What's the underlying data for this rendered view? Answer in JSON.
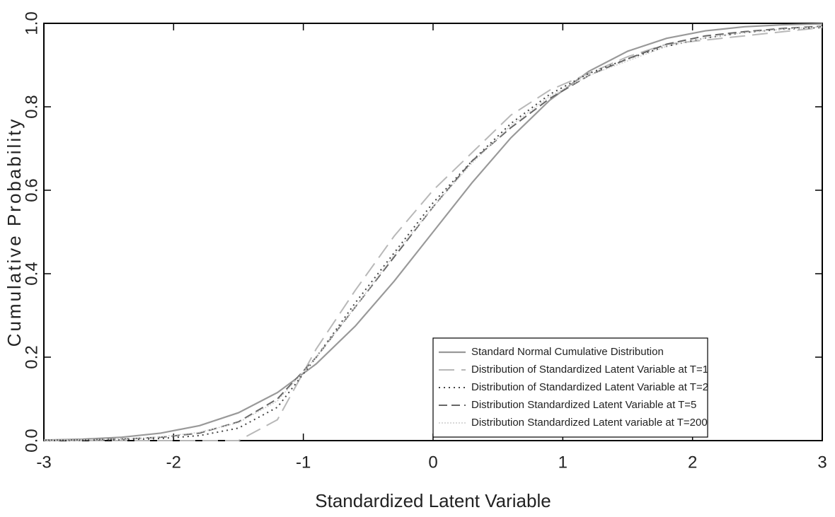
{
  "chart_data": {
    "type": "line",
    "x_label": "Standardized Latent Variable",
    "y_label": "Cumulative Probability",
    "x": [
      -3,
      -2.7,
      -2.4,
      -2.1,
      -1.8,
      -1.5,
      -1.2,
      -0.9,
      -0.6,
      -0.3,
      0,
      0.3,
      0.6,
      0.9,
      1.2,
      1.5,
      1.8,
      2.1,
      2.4,
      2.7,
      3
    ],
    "series": [
      {
        "name": "Standard Normal Cumulative Distribution",
        "color": "#999999",
        "dash": "",
        "width": 2.2,
        "values": [
          0.0013,
          0.0035,
          0.0082,
          0.0179,
          0.0359,
          0.0668,
          0.1151,
          0.1841,
          0.2743,
          0.3821,
          0.5,
          0.6179,
          0.7257,
          0.8159,
          0.8849,
          0.9332,
          0.9641,
          0.9821,
          0.9918,
          0.9965,
          0.9987
        ]
      },
      {
        "name": "Distribution of Standardized Latent Variable at T=1",
        "color": "#b8b8b8",
        "dash": "22 10",
        "width": 2,
        "values": [
          0,
          0,
          0,
          0,
          0,
          0,
          0.05,
          0.22,
          0.36,
          0.49,
          0.6,
          0.69,
          0.78,
          0.84,
          0.88,
          0.92,
          0.95,
          0.96,
          0.97,
          0.98,
          0.99
        ]
      },
      {
        "name": "Distribution of Standardized Latent Variable at T=2",
        "color": "#444444",
        "dash": "2 5",
        "width": 2,
        "values": [
          0,
          0.001,
          0.002,
          0.005,
          0.012,
          0.03,
          0.08,
          0.2,
          0.33,
          0.45,
          0.57,
          0.67,
          0.76,
          0.83,
          0.88,
          0.915,
          0.945,
          0.965,
          0.978,
          0.986,
          0.99
        ]
      },
      {
        "name": "Distribution Standardized Latent Variable at T=5",
        "color": "#666666",
        "dash": "12 6",
        "width": 2,
        "values": [
          0.001,
          0.002,
          0.004,
          0.008,
          0.018,
          0.045,
          0.1,
          0.2,
          0.32,
          0.44,
          0.56,
          0.67,
          0.75,
          0.82,
          0.875,
          0.915,
          0.95,
          0.97,
          0.98,
          0.988,
          0.993
        ]
      },
      {
        "name": "Distribution Standardized Latent variable at T=200",
        "color": "#cccccc",
        "dash": "2 2",
        "width": 1.5,
        "values": [
          0.001,
          0.002,
          0.004,
          0.009,
          0.02,
          0.043,
          0.095,
          0.2,
          0.32,
          0.445,
          0.56,
          0.665,
          0.755,
          0.825,
          0.875,
          0.91,
          0.945,
          0.965,
          0.978,
          0.986,
          0.992
        ]
      }
    ],
    "xlim": [
      -3,
      3
    ],
    "xticks": [
      -3,
      -2,
      -1,
      0,
      1,
      2,
      3
    ],
    "ylim": [
      0,
      1
    ],
    "yticks": [
      {
        "value": 0,
        "label": "0.0"
      },
      0.2,
      0.4,
      0.6,
      0.8,
      {
        "value": 1,
        "label": "1.0"
      }
    ],
    "legend": "lower right"
  }
}
